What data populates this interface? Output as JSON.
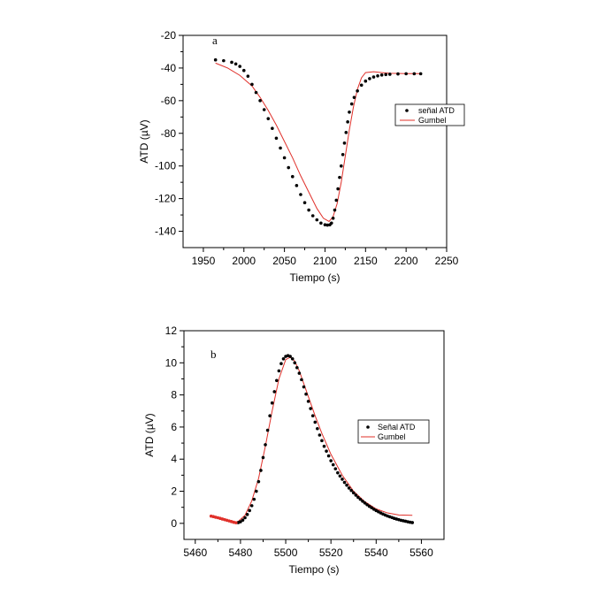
{
  "chart_data": [
    {
      "type": "scatter",
      "panel_label": "a",
      "xlabel": "Tiempo (s)",
      "ylabel": "ATD (µV)",
      "xlim": [
        1925,
        2250
      ],
      "ylim": [
        -150,
        -20
      ],
      "x_ticks": [
        1950,
        2000,
        2050,
        2100,
        2150,
        2200,
        2250
      ],
      "y_ticks": [
        -20,
        -40,
        -60,
        -80,
        -100,
        -120,
        -140
      ],
      "legend_position": "right",
      "series": [
        {
          "name": "señal ATD",
          "kind": "points",
          "color": "#000000",
          "x": [
            1965,
            1975,
            1985,
            1990,
            1995,
            2000,
            2005,
            2010,
            2015,
            2020,
            2025,
            2030,
            2035,
            2040,
            2045,
            2050,
            2055,
            2060,
            2065,
            2070,
            2075,
            2080,
            2085,
            2090,
            2095,
            2100,
            2103,
            2106,
            2108,
            2110,
            2112,
            2114,
            2116,
            2118,
            2120,
            2122,
            2124,
            2126,
            2128,
            2130,
            2133,
            2136,
            2140,
            2145,
            2150,
            2155,
            2160,
            2165,
            2170,
            2175,
            2180,
            2190,
            2200,
            2210,
            2218
          ],
          "y": [
            -35,
            -35.5,
            -36.5,
            -37.5,
            -39,
            -41.5,
            -45,
            -50,
            -55,
            -60,
            -65.5,
            -71,
            -77,
            -83,
            -89,
            -95,
            -101,
            -106.5,
            -112,
            -117.5,
            -122.5,
            -127,
            -130.5,
            -133,
            -135,
            -136,
            -136.2,
            -136,
            -135,
            -132,
            -127,
            -121,
            -114,
            -107,
            -100,
            -93,
            -86,
            -79.5,
            -73,
            -67,
            -62,
            -58,
            -54,
            -50.5,
            -48,
            -46.5,
            -45.5,
            -44.8,
            -44.3,
            -44,
            -43.8,
            -43.6,
            -43.5,
            -43.5,
            -43.5
          ]
        },
        {
          "name": "Gumbel",
          "kind": "line",
          "color": "#e0302a",
          "x": [
            1965,
            1980,
            1995,
            2010,
            2020,
            2030,
            2040,
            2050,
            2060,
            2070,
            2080,
            2090,
            2098,
            2105,
            2110,
            2115,
            2120,
            2125,
            2130,
            2135,
            2140,
            2145,
            2150,
            2160,
            2170,
            2180,
            2200,
            2218
          ],
          "y": [
            -37,
            -40,
            -44.5,
            -51,
            -58,
            -66,
            -75,
            -85,
            -95,
            -106,
            -116,
            -126,
            -132,
            -134,
            -131,
            -123,
            -110,
            -94,
            -78,
            -64,
            -53,
            -46,
            -42.8,
            -42.3,
            -42.8,
            -43.2,
            -43.4,
            -43.4
          ]
        }
      ]
    },
    {
      "type": "scatter",
      "panel_label": "b",
      "xlabel": "Tiempo (s)",
      "ylabel": "ATD (µV)",
      "xlim": [
        5455,
        5570
      ],
      "ylim": [
        -1,
        12
      ],
      "x_ticks": [
        5460,
        5480,
        5500,
        5520,
        5540,
        5560
      ],
      "y_ticks": [
        0,
        2,
        4,
        6,
        8,
        10,
        12
      ],
      "legend_position": "right",
      "series": [
        {
          "name": "Señal ATD",
          "kind": "points",
          "color": "#000000",
          "x": [
            5479,
            5480,
            5481,
            5482,
            5483,
            5484,
            5485,
            5486,
            5487,
            5488,
            5489,
            5490,
            5491,
            5492,
            5493,
            5494,
            5495,
            5496,
            5497,
            5498,
            5499,
            5500,
            5501,
            5502,
            5503,
            5504,
            5505,
            5506,
            5507,
            5508,
            5509,
            5510,
            5511,
            5512,
            5513,
            5514,
            5515,
            5516,
            5517,
            5518,
            5519,
            5520,
            5521,
            5522,
            5523,
            5524,
            5525,
            5526,
            5527,
            5528,
            5529,
            5530,
            5531,
            5532,
            5533,
            5534,
            5535,
            5536,
            5537,
            5538,
            5539,
            5540,
            5541,
            5542,
            5543,
            5544,
            5545,
            5546,
            5547,
            5548,
            5549,
            5550,
            5551,
            5552,
            5553,
            5554,
            5555,
            5556
          ],
          "y": [
            0.05,
            0.1,
            0.2,
            0.35,
            0.55,
            0.8,
            1.1,
            1.5,
            2.0,
            2.6,
            3.3,
            4.1,
            4.9,
            5.8,
            6.7,
            7.5,
            8.2,
            8.9,
            9.5,
            9.95,
            10.25,
            10.4,
            10.45,
            10.4,
            10.25,
            10.0,
            9.7,
            9.35,
            8.95,
            8.5,
            8.05,
            7.6,
            7.15,
            6.7,
            6.3,
            5.9,
            5.5,
            5.15,
            4.8,
            4.5,
            4.2,
            3.9,
            3.65,
            3.4,
            3.15,
            2.95,
            2.75,
            2.55,
            2.38,
            2.2,
            2.05,
            1.9,
            1.76,
            1.62,
            1.5,
            1.38,
            1.27,
            1.16,
            1.06,
            0.97,
            0.88,
            0.8,
            0.72,
            0.65,
            0.58,
            0.52,
            0.46,
            0.41,
            0.36,
            0.31,
            0.27,
            0.23,
            0.19,
            0.16,
            0.13,
            0.1,
            0.07,
            0.05
          ]
        },
        {
          "name": "",
          "kind": "points",
          "color": "#e0302a",
          "x": [
            5467,
            5468,
            5469,
            5470,
            5471,
            5472,
            5473,
            5474,
            5475,
            5476,
            5477,
            5478
          ],
          "y": [
            0.45,
            0.42,
            0.38,
            0.35,
            0.31,
            0.27,
            0.23,
            0.19,
            0.15,
            0.11,
            0.07,
            0.04
          ]
        },
        {
          "name": "Gumbel",
          "kind": "line",
          "color": "#e0302a",
          "x": [
            5478,
            5482,
            5485,
            5488,
            5491,
            5494,
            5497,
            5500,
            5502,
            5504,
            5506,
            5508,
            5510,
            5513,
            5516,
            5520,
            5525,
            5530,
            5535,
            5540,
            5545,
            5550,
            5556
          ],
          "y": [
            0.0,
            0.5,
            1.4,
            2.8,
            4.8,
            7.0,
            9.0,
            10.2,
            10.35,
            10.1,
            9.5,
            8.7,
            7.9,
            6.7,
            5.6,
            4.3,
            3.0,
            2.0,
            1.35,
            0.9,
            0.65,
            0.52,
            0.5
          ]
        }
      ]
    }
  ]
}
